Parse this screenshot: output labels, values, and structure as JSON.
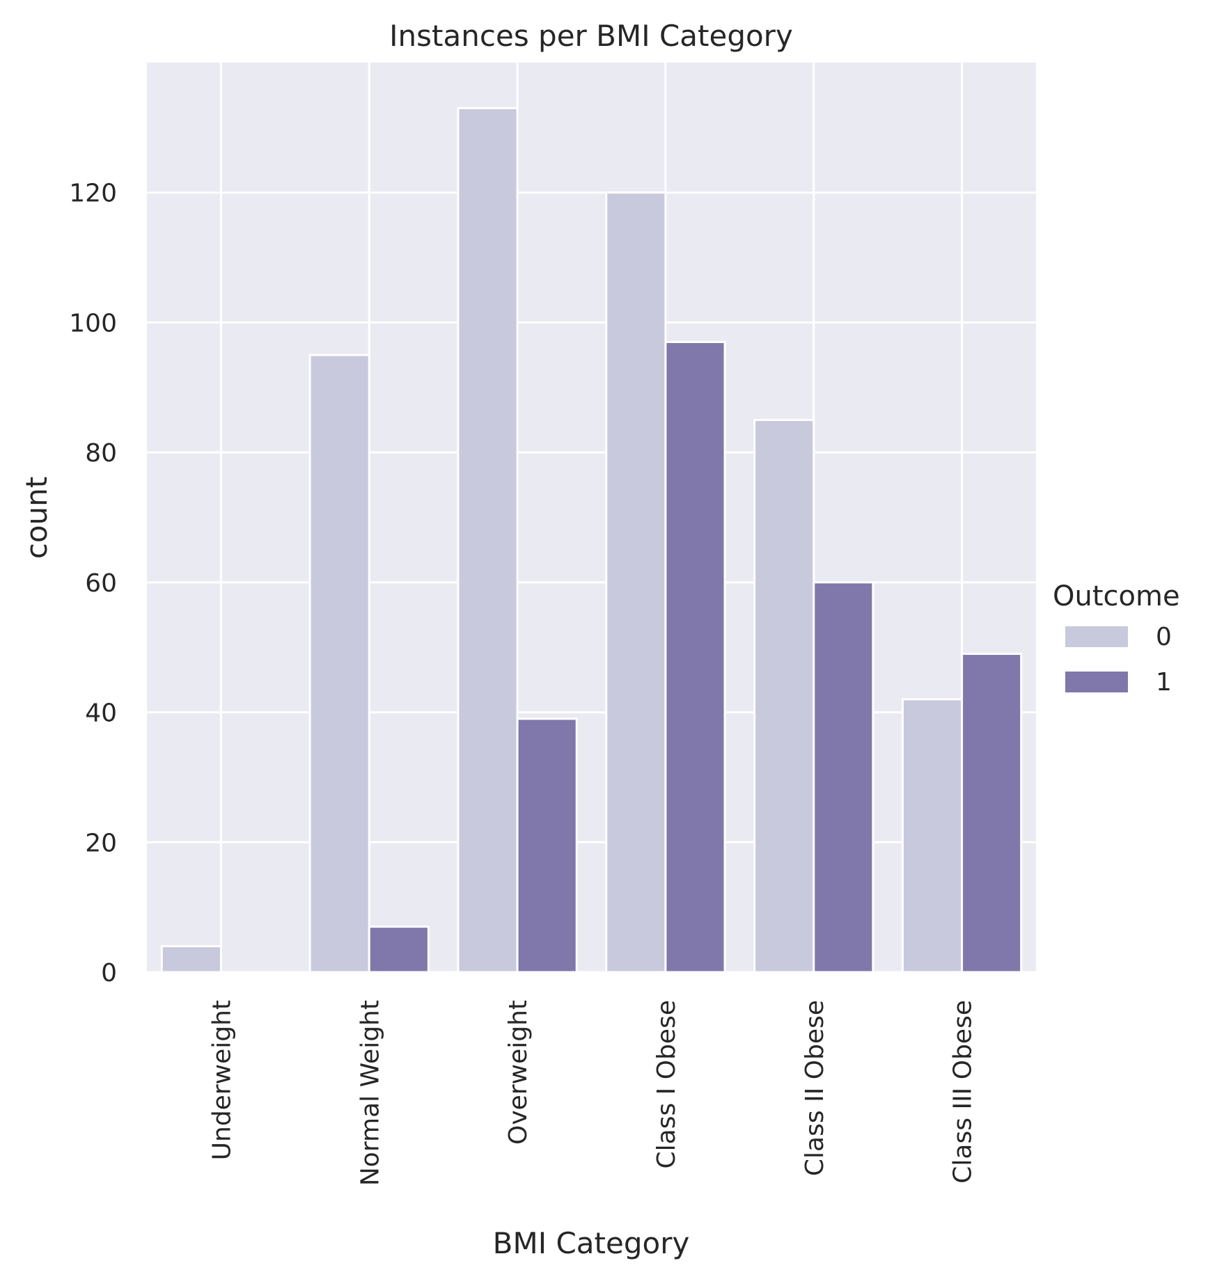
{
  "chart_data": {
    "type": "bar",
    "title": "Instances per BMI Category",
    "xlabel": "BMI Category",
    "ylabel": "count",
    "categories": [
      "Underweight",
      "Normal Weight",
      "Overweight",
      "Class I Obese",
      "Class II Obese",
      "Class III Obese"
    ],
    "series": [
      {
        "name": "0",
        "values": [
          4,
          95,
          133,
          120,
          85,
          42
        ],
        "color": "#c8c9dd"
      },
      {
        "name": "1",
        "values": [
          0,
          7,
          39,
          97,
          60,
          49
        ],
        "color": "#8078aa"
      }
    ],
    "ylim": [
      0,
      140
    ],
    "yticks": [
      0,
      20,
      40,
      60,
      80,
      100,
      120
    ],
    "grid": true,
    "legend": {
      "title": "Outcome",
      "placement": "right"
    },
    "background_color": "#eaeaf2"
  }
}
